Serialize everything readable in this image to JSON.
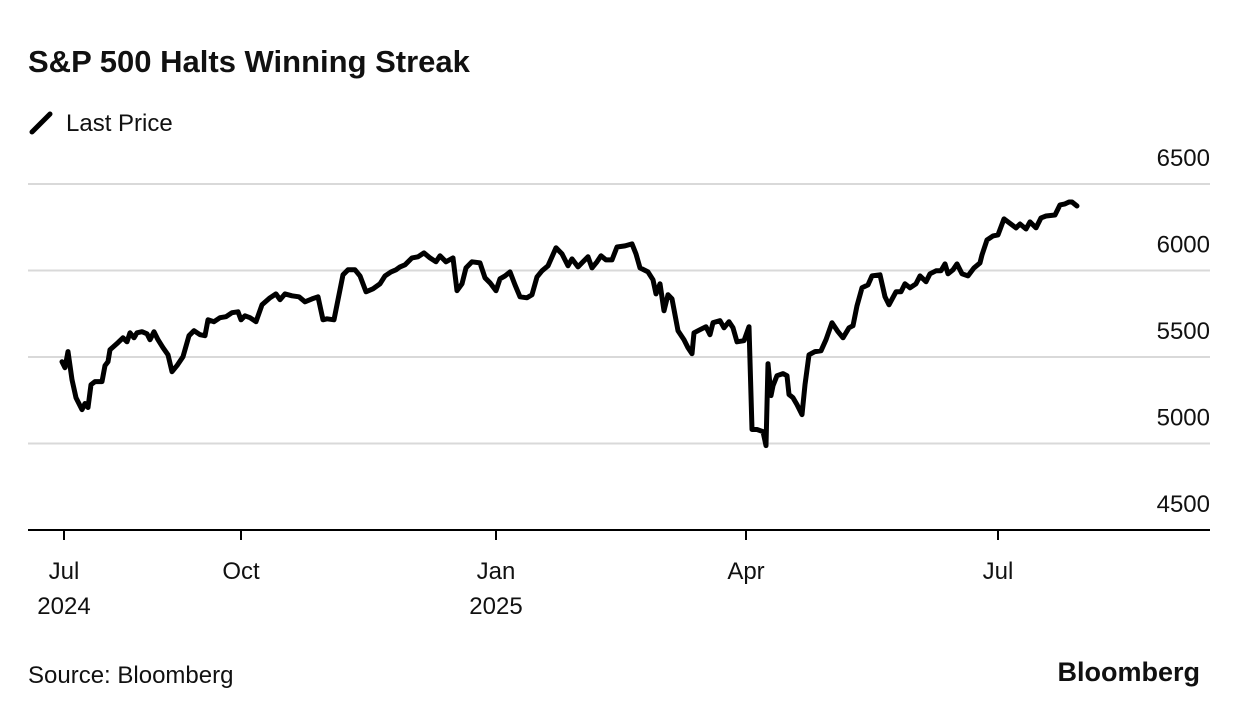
{
  "chart_data": {
    "type": "line",
    "title": "S&P 500 Halts Winning Streak",
    "source": "Source: Bloomberg",
    "brand": "Bloomberg",
    "xlim": [
      28,
      1210
    ],
    "xticks": [
      {
        "value": 64,
        "label": "Jul",
        "sublabel": "2024"
      },
      {
        "value": 241,
        "label": "Oct"
      },
      {
        "value": 496,
        "label": "Jan",
        "sublabel": "2025"
      },
      {
        "value": 746,
        "label": "Apr"
      },
      {
        "value": 998,
        "label": "Jul"
      }
    ],
    "ylim": [
      4500,
      6500
    ],
    "yticks": [
      4500,
      5000,
      5500,
      6000,
      6500
    ],
    "grid": true,
    "x": [
      62,
      65,
      68,
      72,
      76,
      82,
      85,
      88,
      91,
      95,
      102,
      105,
      108,
      110,
      118,
      123,
      127,
      130,
      134,
      137,
      142,
      147,
      150,
      154,
      158,
      163,
      168,
      172,
      177,
      183,
      189,
      194,
      200,
      205,
      208,
      214,
      220,
      226,
      232,
      238,
      241,
      245,
      250,
      256,
      262,
      270,
      276,
      280,
      285,
      292,
      299,
      305,
      312,
      318,
      323,
      327,
      334,
      338,
      343,
      348,
      355,
      360,
      366,
      373,
      380,
      385,
      391,
      396,
      400,
      405,
      412,
      418,
      424,
      430,
      436,
      440,
      446,
      453,
      457,
      462,
      466,
      472,
      480,
      485,
      490,
      496,
      500,
      505,
      510,
      515,
      520,
      527,
      532,
      537,
      542,
      548,
      556,
      562,
      568,
      572,
      578,
      583,
      588,
      592,
      597,
      601,
      606,
      612,
      617,
      625,
      632,
      636,
      640,
      648,
      653,
      656,
      660,
      664,
      668,
      672,
      678,
      684,
      688,
      692,
      694,
      700,
      706,
      710,
      713,
      720,
      724,
      729,
      733,
      737,
      744,
      749,
      752,
      757,
      763,
      766,
      768,
      771,
      773,
      777,
      783,
      787,
      789,
      793,
      797,
      802,
      805,
      809,
      815,
      821,
      826,
      832,
      838,
      843,
      849,
      853,
      857,
      862,
      868,
      872,
      880,
      885,
      889,
      896,
      901,
      905,
      910,
      916,
      920,
      926,
      930,
      936,
      941,
      945,
      948,
      953,
      957,
      962,
      968,
      974,
      980,
      982,
      987,
      993,
      998,
      1004,
      1008,
      1016,
      1020,
      1026,
      1030,
      1036,
      1041,
      1046,
      1055,
      1060,
      1065,
      1069,
      1072,
      1077
    ],
    "series": [
      {
        "name": "Last Price",
        "color": "#000000",
        "values": [
          5473,
          5438,
          5531,
          5369,
          5265,
          5196,
          5231,
          5208,
          5340,
          5358,
          5358,
          5450,
          5473,
          5542,
          5583,
          5611,
          5588,
          5640,
          5611,
          5640,
          5646,
          5634,
          5600,
          5646,
          5600,
          5554,
          5513,
          5415,
          5450,
          5502,
          5623,
          5652,
          5629,
          5623,
          5715,
          5704,
          5727,
          5733,
          5756,
          5761,
          5715,
          5738,
          5727,
          5704,
          5802,
          5842,
          5865,
          5831,
          5865,
          5854,
          5848,
          5819,
          5836,
          5848,
          5715,
          5721,
          5715,
          5831,
          5975,
          6004,
          6004,
          5969,
          5877,
          5894,
          5923,
          5969,
          5992,
          6004,
          6021,
          6033,
          6073,
          6079,
          6102,
          6073,
          6050,
          6085,
          6050,
          6073,
          5883,
          5923,
          6015,
          6050,
          6044,
          5958,
          5929,
          5883,
          5952,
          5969,
          5992,
          5917,
          5848,
          5842,
          5860,
          5963,
          5998,
          6027,
          6131,
          6096,
          6027,
          6067,
          6021,
          6050,
          6079,
          6015,
          6050,
          6085,
          6061,
          6061,
          6136,
          6142,
          6154,
          6096,
          6015,
          5992,
          5946,
          5865,
          5923,
          5767,
          5860,
          5836,
          5652,
          5600,
          5554,
          5519,
          5640,
          5658,
          5675,
          5629,
          5698,
          5710,
          5669,
          5704,
          5669,
          5588,
          5594,
          5675,
          5081,
          5081,
          5069,
          4988,
          5461,
          5277,
          5334,
          5392,
          5404,
          5392,
          5283,
          5265,
          5225,
          5167,
          5340,
          5513,
          5531,
          5536,
          5600,
          5698,
          5646,
          5611,
          5669,
          5681,
          5796,
          5900,
          5917,
          5969,
          5975,
          5848,
          5802,
          5877,
          5877,
          5923,
          5900,
          5923,
          5969,
          5935,
          5981,
          5998,
          5998,
          6038,
          5981,
          6004,
          6038,
          5981,
          5969,
          6015,
          6044,
          6090,
          6177,
          6200,
          6206,
          6298,
          6281,
          6246,
          6269,
          6240,
          6281,
          6246,
          6304,
          6315,
          6321,
          6379,
          6385,
          6396,
          6396,
          6373
        ]
      }
    ]
  }
}
